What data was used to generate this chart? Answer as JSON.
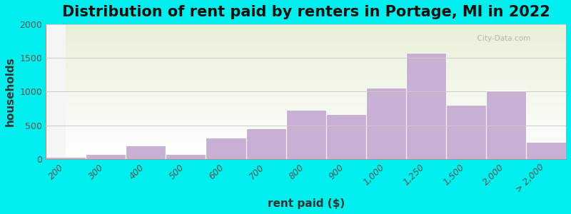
{
  "title": "Distribution of rent paid by renters in Portage, MI in 2022",
  "xlabel": "rent paid ($)",
  "ylabel": "households",
  "background_outer": "#00EEEE",
  "background_inner_top": "#e8f0d8",
  "background_inner_bottom": "#f5f5f5",
  "bar_color": "#c8afd4",
  "bar_edge_color": "#ffffff",
  "ylim": [
    0,
    2000
  ],
  "yticks": [
    0,
    500,
    1000,
    1500,
    2000
  ],
  "categories": [
    "200",
    "300",
    "400",
    "500",
    "600",
    "700",
    "800",
    "900",
    "1,000",
    "1,250",
    "1,500",
    "2,000",
    "> 2,000"
  ],
  "values": [
    30,
    75,
    200,
    75,
    320,
    450,
    730,
    670,
    1060,
    1580,
    800,
    1010,
    255
  ],
  "title_fontsize": 15,
  "axis_label_fontsize": 11,
  "tick_label_fontsize": 9,
  "ytick_label_fontsize": 9
}
